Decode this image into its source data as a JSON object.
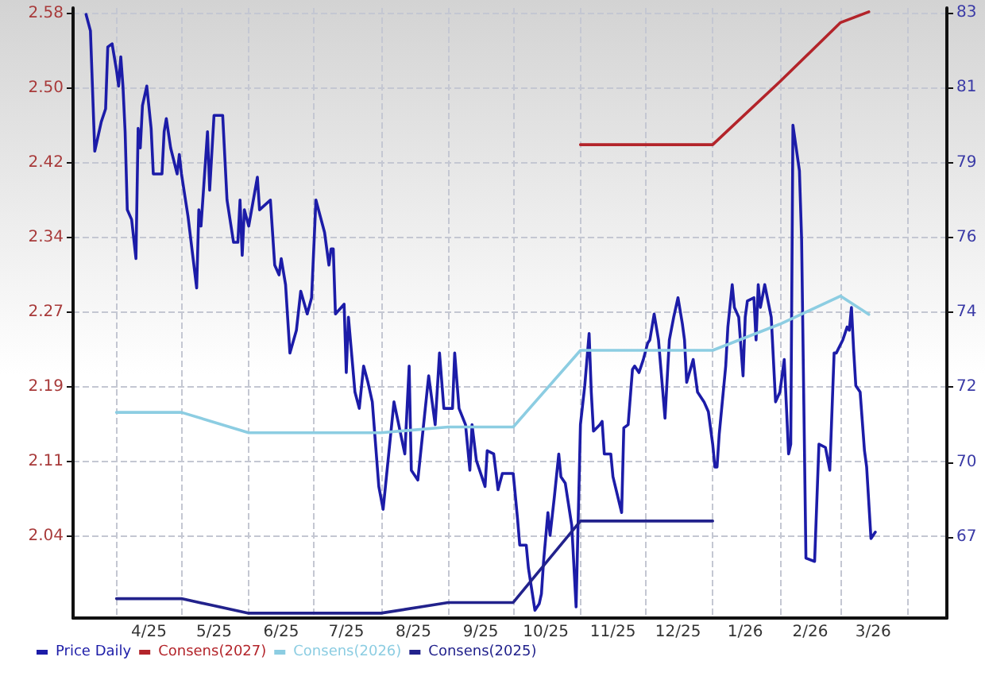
{
  "chart_data": {
    "type": "line",
    "series": [
      {
        "name": "Price Daily",
        "color": "#1c1ca8",
        "axis": "y2",
        "x": [
          "2025-03-18",
          "2025-03-20",
          "2025-03-22",
          "2025-03-25",
          "2025-03-27",
          "2025-03-28",
          "2025-03-30",
          "2025-04-01",
          "2025-04-02",
          "2025-04-03",
          "2025-04-04",
          "2025-04-05",
          "2025-04-06",
          "2025-04-08",
          "2025-04-10",
          "2025-04-11",
          "2025-04-12",
          "2025-04-13",
          "2025-04-15",
          "2025-04-17",
          "2025-04-18",
          "2025-04-22",
          "2025-04-23",
          "2025-04-24",
          "2025-04-26",
          "2025-04-29",
          "2025-04-30",
          "2025-05-01",
          "2025-05-04",
          "2025-05-08",
          "2025-05-09",
          "2025-05-10",
          "2025-05-13",
          "2025-05-14",
          "2025-05-16",
          "2025-05-20",
          "2025-05-22",
          "2025-05-25",
          "2025-05-27",
          "2025-05-28",
          "2025-05-29",
          "2025-05-30",
          "2025-06-01",
          "2025-06-05",
          "2025-06-06",
          "2025-06-11",
          "2025-06-13",
          "2025-06-15",
          "2025-06-16",
          "2025-06-18",
          "2025-06-20",
          "2025-06-23",
          "2025-06-25",
          "2025-06-28",
          "2025-06-30",
          "2025-07-02",
          "2025-07-06",
          "2025-07-08",
          "2025-07-09",
          "2025-07-10",
          "2025-07-11",
          "2025-07-15",
          "2025-07-16",
          "2025-07-17",
          "2025-07-20",
          "2025-07-22",
          "2025-07-24",
          "2025-07-26",
          "2025-07-28",
          "2025-07-31",
          "2025-08-02",
          "2025-08-07",
          "2025-08-12",
          "2025-08-14",
          "2025-08-15",
          "2025-08-18",
          "2025-08-23",
          "2025-08-26",
          "2025-08-28",
          "2025-08-30",
          "2025-09-03",
          "2025-09-04",
          "2025-09-06",
          "2025-09-09",
          "2025-09-11",
          "2025-09-12",
          "2025-09-14",
          "2025-09-18",
          "2025-09-19",
          "2025-09-22",
          "2025-09-24",
          "2025-09-26",
          "2025-10-01",
          "2025-10-03",
          "2025-10-04",
          "2025-10-07",
          "2025-10-08",
          "2025-10-11",
          "2025-10-13",
          "2025-10-14",
          "2025-10-15",
          "2025-10-17",
          "2025-10-18",
          "2025-10-20",
          "2025-10-22",
          "2025-10-23",
          "2025-10-25",
          "2025-10-28",
          "2025-10-30",
          "2025-11-01",
          "2025-11-03",
          "2025-11-05",
          "2025-11-06",
          "2025-11-07",
          "2025-11-10",
          "2025-11-11",
          "2025-11-12",
          "2025-11-15",
          "2025-11-16",
          "2025-11-20",
          "2025-11-21",
          "2025-11-23",
          "2025-11-25",
          "2025-11-26",
          "2025-11-28",
          "2025-11-30",
          "2025-12-02",
          "2025-12-03",
          "2025-12-05",
          "2025-12-07",
          "2025-12-08",
          "2025-12-10",
          "2025-12-12",
          "2025-12-14",
          "2025-12-16",
          "2025-12-18",
          "2025-12-19",
          "2025-12-20",
          "2025-12-23",
          "2025-12-25",
          "2025-12-28",
          "2025-12-30",
          "2026-01-01",
          "2026-01-02",
          "2026-01-03",
          "2026-01-04",
          "2026-01-07",
          "2026-01-08",
          "2026-01-10",
          "2026-01-11",
          "2026-01-13",
          "2026-01-15",
          "2026-01-16",
          "2026-01-17",
          "2026-01-20",
          "2026-01-21",
          "2026-01-22",
          "2026-01-23",
          "2026-01-25",
          "2026-01-28",
          "2026-01-30",
          "2026-02-01",
          "2026-02-03",
          "2026-02-05",
          "2026-02-06",
          "2026-02-07",
          "2026-02-10",
          "2026-02-11",
          "2026-02-13",
          "2026-02-17",
          "2026-02-19",
          "2026-02-22",
          "2026-02-24",
          "2026-02-26",
          "2026-02-27",
          "2026-03-02",
          "2026-03-04",
          "2026-03-05",
          "2026-03-06",
          "2026-03-07",
          "2026-03-08",
          "2026-03-10",
          "2026-03-12",
          "2026-03-13",
          "2026-03-15",
          "2026-03-17"
        ],
        "values": [
          83.3,
          82.8,
          79.1,
          80.0,
          80.4,
          82.3,
          82.4,
          81.6,
          81.1,
          82.0,
          81.1,
          79.7,
          77.3,
          77.0,
          75.8,
          79.8,
          79.2,
          80.5,
          81.1,
          79.8,
          78.4,
          78.4,
          79.7,
          80.1,
          79.2,
          78.4,
          79.0,
          78.4,
          77.1,
          74.9,
          77.3,
          76.8,
          79.7,
          77.9,
          80.2,
          80.2,
          77.6,
          76.3,
          76.3,
          77.6,
          75.9,
          77.3,
          76.8,
          78.3,
          77.3,
          77.6,
          75.6,
          75.3,
          75.8,
          75.0,
          72.9,
          73.6,
          74.8,
          74.1,
          74.6,
          77.6,
          76.6,
          75.6,
          76.1,
          76.1,
          74.1,
          74.4,
          72.3,
          74.0,
          71.7,
          71.2,
          72.5,
          72.0,
          71.4,
          68.8,
          68.1,
          71.4,
          69.8,
          72.5,
          69.3,
          69.0,
          72.2,
          70.7,
          72.9,
          71.2,
          71.2,
          72.9,
          71.2,
          70.7,
          69.3,
          70.7,
          69.6,
          68.8,
          69.9,
          69.8,
          68.7,
          69.2,
          69.2,
          67.8,
          67.0,
          67.0,
          66.3,
          65.0,
          65.2,
          65.5,
          66.5,
          68.0,
          67.3,
          68.5,
          69.8,
          69.1,
          68.9,
          67.6,
          65.1,
          70.7,
          71.9,
          73.5,
          71.7,
          70.5,
          70.7,
          70.8,
          69.8,
          69.8,
          69.1,
          68.0,
          70.6,
          70.7,
          72.4,
          72.5,
          72.3,
          72.7,
          73.2,
          73.3,
          74.1,
          73.3,
          72.5,
          70.9,
          73.3,
          74.0,
          74.6,
          73.8,
          73.3,
          72.0,
          72.7,
          71.7,
          71.4,
          71.1,
          70.1,
          69.4,
          69.4,
          70.4,
          72.5,
          73.7,
          75.0,
          74.3,
          74.0,
          72.2,
          74.0,
          74.5,
          74.6,
          73.3,
          75.0,
          74.3,
          75.0,
          74.0,
          71.4,
          71.7,
          72.7,
          69.8,
          70.1,
          79.9,
          78.5,
          76.4,
          66.6,
          66.5,
          70.1,
          70.0,
          69.3,
          72.9,
          72.9,
          73.3,
          73.7,
          73.6,
          74.3,
          73.0,
          71.9,
          71.7,
          69.9,
          69.4,
          67.2,
          67.4
        ]
      },
      {
        "name": "Consens(2027)",
        "color": "#b3242a",
        "x": [
          "2025-11-01",
          "2025-12-01",
          "2026-01-01",
          "2026-02-01",
          "2026-03-01",
          "2026-03-14"
        ],
        "values": [
          2.44,
          2.44,
          2.44,
          2.505,
          2.566,
          2.577
        ]
      },
      {
        "name": "Consens(2026)",
        "color": "#8ccde2",
        "x": [
          "2025-04-01",
          "2025-05-01",
          "2025-06-01",
          "2025-07-01",
          "2025-08-01",
          "2025-09-01",
          "2025-10-01",
          "2025-11-01",
          "2025-12-01",
          "2026-01-01",
          "2026-02-01",
          "2026-03-01",
          "2026-03-14"
        ],
        "values": [
          2.164,
          2.164,
          2.143,
          2.143,
          2.143,
          2.149,
          2.149,
          2.228,
          2.228,
          2.228,
          2.255,
          2.284,
          2.265
        ]
      },
      {
        "name": "Consens(2025)",
        "color": "#22228c",
        "x": [
          "2025-04-01",
          "2025-05-01",
          "2025-06-01",
          "2025-07-01",
          "2025-08-01",
          "2025-09-01",
          "2025-10-01",
          "2025-11-01",
          "2025-12-01",
          "2026-01-01"
        ],
        "values": [
          1.972,
          1.972,
          1.957,
          1.957,
          1.957,
          1.968,
          1.968,
          2.052,
          2.052,
          2.052
        ]
      }
    ],
    "xlim": [
      "2025-03-12",
      "2026-04-19"
    ],
    "xticks": [
      {
        "value": "2025-04-01",
        "label": null
      },
      {
        "value": "2025-04-16",
        "label": "4/25"
      },
      {
        "value": "2025-05-01",
        "label": null
      },
      {
        "value": "2025-05-16",
        "label": "5/25"
      },
      {
        "value": "2025-06-01",
        "label": null
      },
      {
        "value": "2025-06-16",
        "label": "6/25"
      },
      {
        "value": "2025-07-01",
        "label": null
      },
      {
        "value": "2025-07-16",
        "label": "7/25"
      },
      {
        "value": "2025-08-01",
        "label": null
      },
      {
        "value": "2025-08-16",
        "label": "8/25"
      },
      {
        "value": "2025-09-01",
        "label": null
      },
      {
        "value": "2025-09-16",
        "label": "9/25"
      },
      {
        "value": "2025-10-01",
        "label": null
      },
      {
        "value": "2025-10-16",
        "label": "10/25"
      },
      {
        "value": "2025-11-01",
        "label": null
      },
      {
        "value": "2025-11-16",
        "label": "11/25"
      },
      {
        "value": "2025-12-01",
        "label": null
      },
      {
        "value": "2025-12-16",
        "label": "12/25"
      },
      {
        "value": "2026-01-01",
        "label": null
      },
      {
        "value": "2026-01-16",
        "label": "1/26"
      },
      {
        "value": "2026-02-01",
        "label": null
      },
      {
        "value": "2026-02-15",
        "label": "2/26"
      },
      {
        "value": "2026-03-01",
        "label": null
      },
      {
        "value": "2026-03-16",
        "label": "3/26"
      },
      {
        "value": "2026-04-01",
        "label": null
      }
    ],
    "ylim": [
      1.952,
      2.581
    ],
    "yticks": [
      {
        "value": 2.0365,
        "label": "2.04"
      },
      {
        "value": 2.1135,
        "label": "2.11"
      },
      {
        "value": 2.1905,
        "label": "2.19"
      },
      {
        "value": 2.2675,
        "label": "2.27"
      },
      {
        "value": 2.3445,
        "label": "2.34"
      },
      {
        "value": 2.4215,
        "label": "2.42"
      },
      {
        "value": 2.4985,
        "label": "2.50"
      },
      {
        "value": 2.5755,
        "label": "2.58"
      }
    ],
    "y2lim": [
      64.76,
      83.5
    ],
    "y2ticks": [
      {
        "value": 67.25,
        "label": "67"
      },
      {
        "value": 69.55,
        "label": "70"
      },
      {
        "value": 71.85,
        "label": "72"
      },
      {
        "value": 74.15,
        "label": "74"
      },
      {
        "value": 76.45,
        "label": "76"
      },
      {
        "value": 78.75,
        "label": "79"
      },
      {
        "value": 81.05,
        "label": "81"
      },
      {
        "value": 83.35,
        "label": "83"
      }
    ],
    "grid": true,
    "legend": "bottom left",
    "marker": "none",
    "line_style": "solid"
  }
}
